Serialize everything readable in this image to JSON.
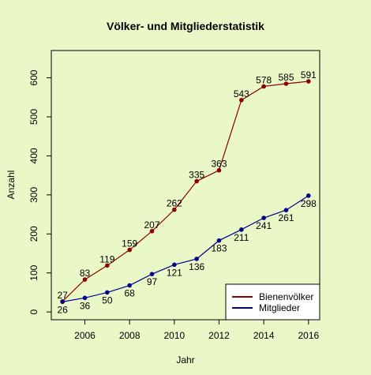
{
  "chart_data": {
    "type": "line",
    "title": "Völker- und Mitgliederstatistik",
    "xlabel": "Jahr",
    "ylabel": "Anzahl",
    "x": [
      2005,
      2006,
      2007,
      2008,
      2009,
      2010,
      2011,
      2012,
      2013,
      2014,
      2015,
      2016
    ],
    "xlim": [
      2004.5,
      2016.5
    ],
    "ylim": [
      -20,
      670
    ],
    "xticks": [
      2006,
      2008,
      2010,
      2012,
      2014,
      2016
    ],
    "yticks": [
      0,
      100,
      200,
      300,
      400,
      500,
      600
    ],
    "grid": false,
    "legend_position": "bottom-right",
    "series": [
      {
        "name": "Bienenvölker",
        "color": "#8b0000",
        "values": [
          27,
          83,
          119,
          159,
          207,
          262,
          335,
          363,
          543,
          578,
          585,
          591
        ],
        "label_position": "above"
      },
      {
        "name": "Mitglieder",
        "color": "#00008b",
        "values": [
          26,
          36,
          50,
          68,
          97,
          121,
          136,
          183,
          211,
          241,
          261,
          298
        ],
        "label_position": "below"
      }
    ]
  }
}
